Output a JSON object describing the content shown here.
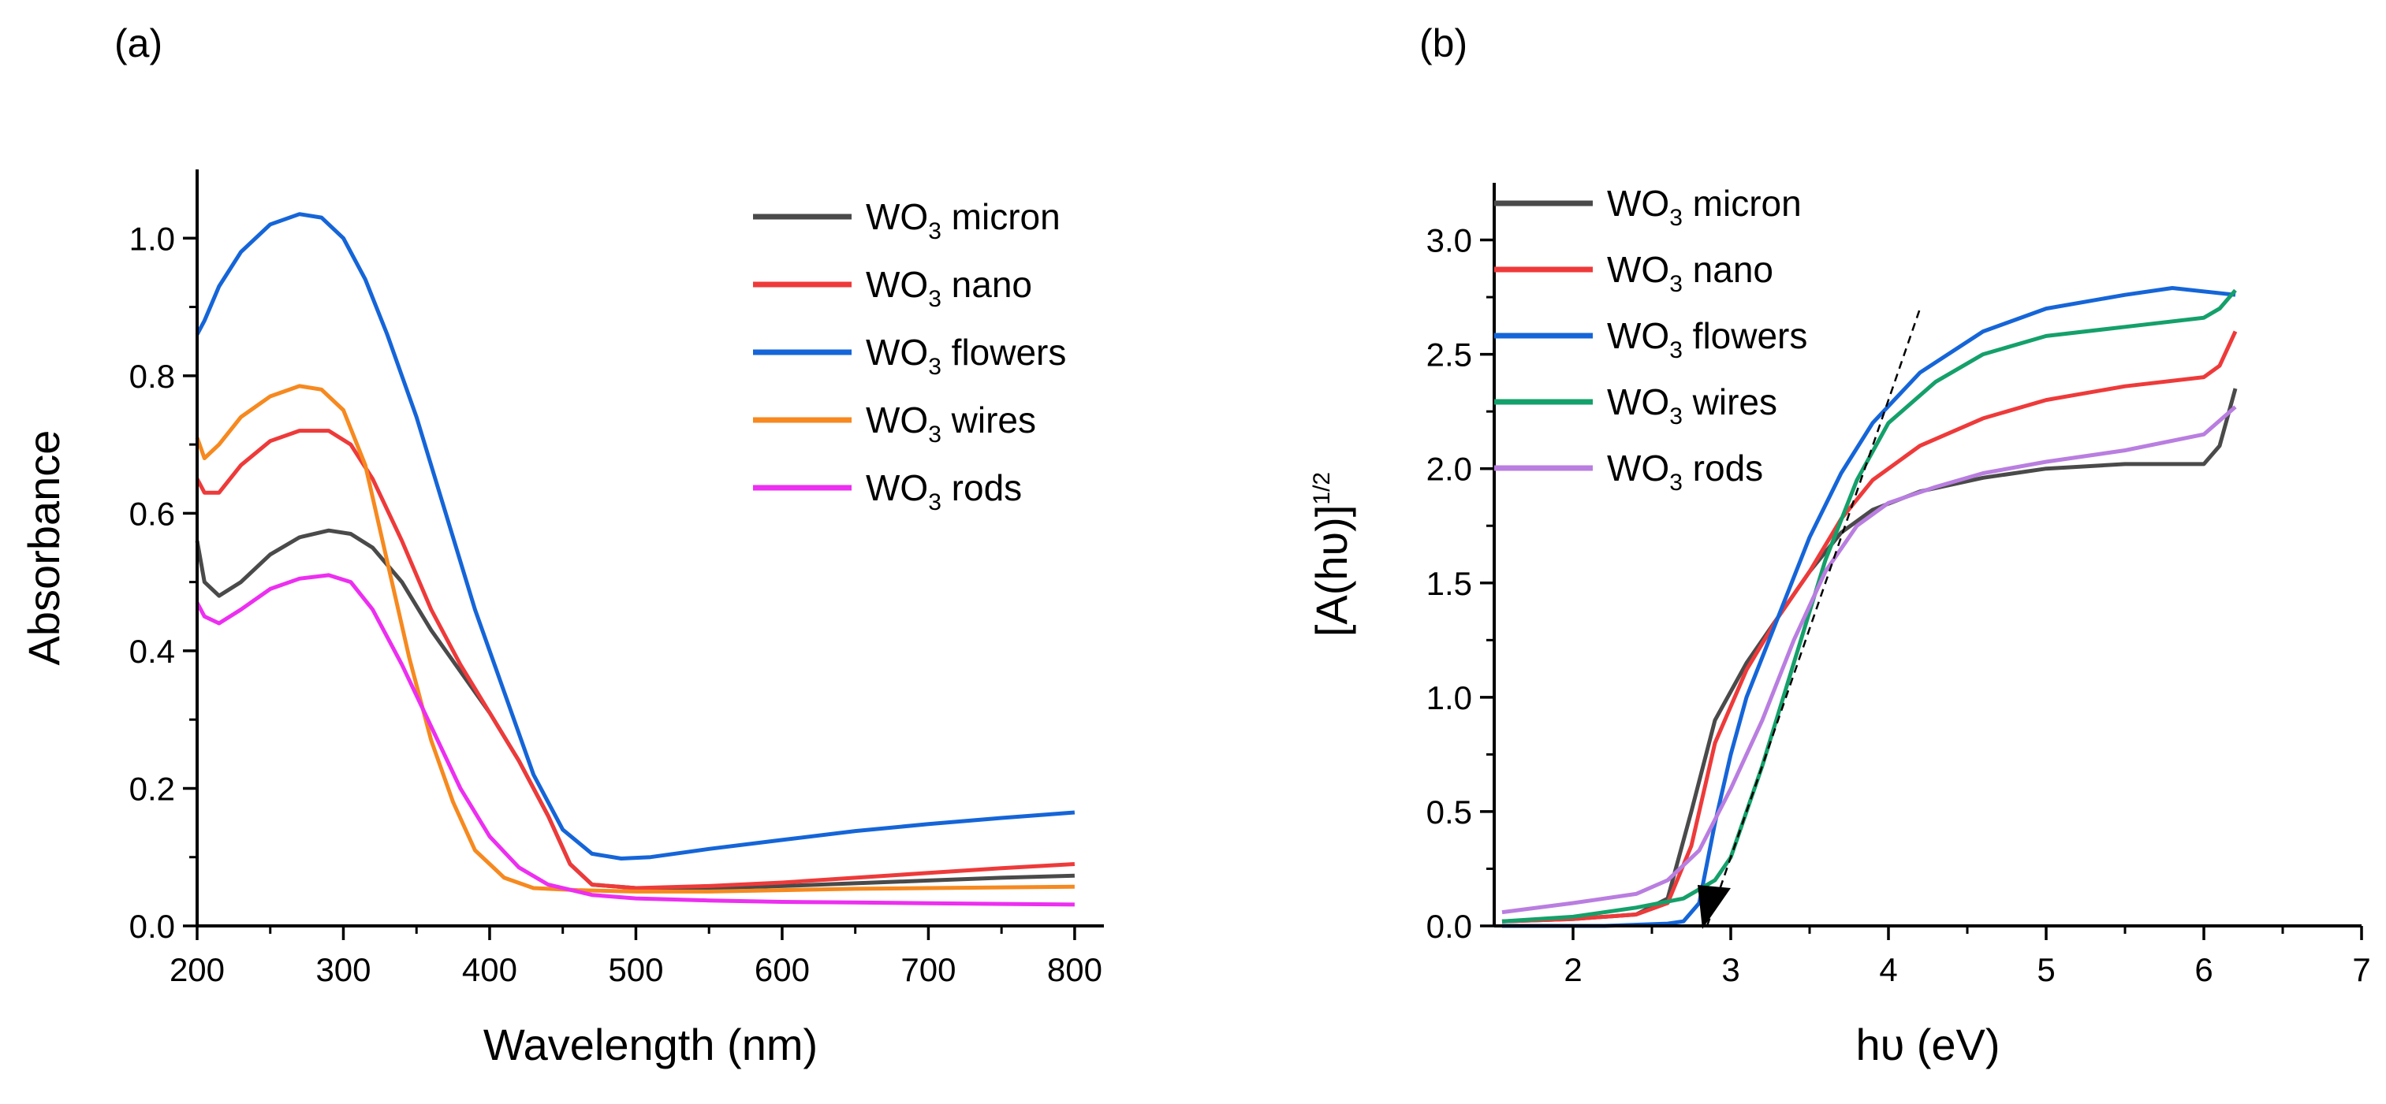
{
  "chart_data": [
    {
      "type": "line",
      "panel_label": "(a)",
      "xlabel": "Wavelength (nm)",
      "ylabel": "Absorbance",
      "xlim": [
        200,
        820
      ],
      "ylim": [
        0,
        1.1
      ],
      "xticks": [
        200,
        300,
        400,
        500,
        600,
        700,
        800
      ],
      "yticks": [
        0.0,
        0.2,
        0.4,
        0.6,
        0.8,
        1.0
      ],
      "xtick_labels": [
        "200",
        "300",
        "400",
        "500",
        "600",
        "700",
        "800"
      ],
      "ytick_labels": [
        "0.0",
        "0.2",
        "0.4",
        "0.6",
        "0.8",
        "1.0"
      ],
      "legend_position": "top-right",
      "series": [
        {
          "name": "WO3 micron",
          "base": "WO",
          "subscript": "3",
          "suffix": " micron",
          "color": "#4a4a4a",
          "points": [
            [
              200,
              0.56
            ],
            [
              205,
              0.5
            ],
            [
              215,
              0.48
            ],
            [
              230,
              0.5
            ],
            [
              250,
              0.54
            ],
            [
              270,
              0.565
            ],
            [
              290,
              0.575
            ],
            [
              305,
              0.57
            ],
            [
              320,
              0.55
            ],
            [
              340,
              0.5
            ],
            [
              360,
              0.43
            ],
            [
              380,
              0.37
            ],
            [
              400,
              0.31
            ],
            [
              420,
              0.24
            ],
            [
              440,
              0.16
            ],
            [
              455,
              0.09
            ],
            [
              470,
              0.06
            ],
            [
              500,
              0.055
            ],
            [
              550,
              0.055
            ],
            [
              600,
              0.058
            ],
            [
              650,
              0.062
            ],
            [
              700,
              0.066
            ],
            [
              750,
              0.07
            ],
            [
              800,
              0.073
            ]
          ]
        },
        {
          "name": "WO3 nano",
          "base": "WO",
          "subscript": "3",
          "suffix": " nano",
          "color": "#ee3a3a",
          "points": [
            [
              200,
              0.65
            ],
            [
              205,
              0.63
            ],
            [
              215,
              0.63
            ],
            [
              230,
              0.67
            ],
            [
              250,
              0.705
            ],
            [
              270,
              0.72
            ],
            [
              290,
              0.72
            ],
            [
              305,
              0.7
            ],
            [
              320,
              0.65
            ],
            [
              340,
              0.56
            ],
            [
              360,
              0.46
            ],
            [
              380,
              0.38
            ],
            [
              400,
              0.31
            ],
            [
              420,
              0.24
            ],
            [
              440,
              0.16
            ],
            [
              455,
              0.09
            ],
            [
              470,
              0.06
            ],
            [
              500,
              0.055
            ],
            [
              550,
              0.058
            ],
            [
              600,
              0.063
            ],
            [
              650,
              0.07
            ],
            [
              700,
              0.077
            ],
            [
              750,
              0.084
            ],
            [
              800,
              0.09
            ]
          ]
        },
        {
          "name": "WO3 flowers",
          "base": "WO",
          "subscript": "3",
          "suffix": " flowers",
          "color": "#1565d8",
          "points": [
            [
              200,
              0.86
            ],
            [
              205,
              0.88
            ],
            [
              215,
              0.93
            ],
            [
              230,
              0.98
            ],
            [
              250,
              1.02
            ],
            [
              270,
              1.035
            ],
            [
              285,
              1.03
            ],
            [
              300,
              1.0
            ],
            [
              315,
              0.94
            ],
            [
              330,
              0.86
            ],
            [
              350,
              0.74
            ],
            [
              370,
              0.6
            ],
            [
              390,
              0.46
            ],
            [
              410,
              0.34
            ],
            [
              430,
              0.22
            ],
            [
              450,
              0.14
            ],
            [
              470,
              0.105
            ],
            [
              490,
              0.098
            ],
            [
              510,
              0.1
            ],
            [
              550,
              0.112
            ],
            [
              600,
              0.125
            ],
            [
              650,
              0.138
            ],
            [
              700,
              0.148
            ],
            [
              750,
              0.157
            ],
            [
              800,
              0.165
            ]
          ]
        },
        {
          "name": "WO3 wires",
          "base": "WO",
          "subscript": "3",
          "suffix": " wires",
          "color": "#f6891f",
          "points": [
            [
              200,
              0.71
            ],
            [
              205,
              0.68
            ],
            [
              215,
              0.7
            ],
            [
              230,
              0.74
            ],
            [
              250,
              0.77
            ],
            [
              270,
              0.785
            ],
            [
              285,
              0.78
            ],
            [
              300,
              0.75
            ],
            [
              315,
              0.67
            ],
            [
              330,
              0.53
            ],
            [
              345,
              0.39
            ],
            [
              360,
              0.27
            ],
            [
              375,
              0.18
            ],
            [
              390,
              0.11
            ],
            [
              410,
              0.07
            ],
            [
              430,
              0.055
            ],
            [
              460,
              0.052
            ],
            [
              500,
              0.05
            ],
            [
              550,
              0.05
            ],
            [
              600,
              0.052
            ],
            [
              650,
              0.054
            ],
            [
              700,
              0.055
            ],
            [
              750,
              0.056
            ],
            [
              800,
              0.057
            ]
          ]
        },
        {
          "name": "WO3 rods",
          "base": "WO",
          "subscript": "3",
          "suffix": " rods",
          "color": "#ec2ff0",
          "points": [
            [
              200,
              0.47
            ],
            [
              205,
              0.45
            ],
            [
              215,
              0.44
            ],
            [
              230,
              0.46
            ],
            [
              250,
              0.49
            ],
            [
              270,
              0.505
            ],
            [
              290,
              0.51
            ],
            [
              305,
              0.5
            ],
            [
              320,
              0.46
            ],
            [
              340,
              0.38
            ],
            [
              360,
              0.29
            ],
            [
              380,
              0.2
            ],
            [
              400,
              0.13
            ],
            [
              420,
              0.085
            ],
            [
              440,
              0.06
            ],
            [
              470,
              0.045
            ],
            [
              500,
              0.04
            ],
            [
              550,
              0.037
            ],
            [
              600,
              0.035
            ],
            [
              650,
              0.034
            ],
            [
              700,
              0.033
            ],
            [
              750,
              0.032
            ],
            [
              800,
              0.031
            ]
          ]
        }
      ]
    },
    {
      "type": "line",
      "panel_label": "(b)",
      "xlabel": "hυ (eV)",
      "ylabel_main": "[A(hυ)]",
      "ylabel_sup": "1/2",
      "xlim": [
        1.5,
        7
      ],
      "ylim": [
        0,
        3.25
      ],
      "xticks": [
        2,
        3,
        4,
        5,
        6,
        7
      ],
      "yticks": [
        0.0,
        0.5,
        1.0,
        1.5,
        2.0,
        2.5,
        3.0
      ],
      "xtick_labels": [
        "2",
        "3",
        "4",
        "5",
        "6",
        "7"
      ],
      "ytick_labels": [
        "0.0",
        "0.5",
        "1.0",
        "1.5",
        "2.0",
        "2.5",
        "3.0"
      ],
      "legend_position": "top-left",
      "tangent_line": [
        [
          2.85,
          0.0
        ],
        [
          4.2,
          2.7
        ]
      ],
      "series": [
        {
          "name": "WO3 micron",
          "base": "WO",
          "subscript": "3",
          "suffix": " micron",
          "color": "#4a4a4a",
          "points": [
            [
              1.55,
              0.02
            ],
            [
              2.0,
              0.03
            ],
            [
              2.4,
              0.05
            ],
            [
              2.6,
              0.12
            ],
            [
              2.75,
              0.5
            ],
            [
              2.9,
              0.9
            ],
            [
              3.1,
              1.15
            ],
            [
              3.3,
              1.35
            ],
            [
              3.5,
              1.55
            ],
            [
              3.7,
              1.72
            ],
            [
              3.9,
              1.82
            ],
            [
              4.2,
              1.9
            ],
            [
              4.6,
              1.96
            ],
            [
              5.0,
              2.0
            ],
            [
              5.5,
              2.02
            ],
            [
              6.0,
              2.02
            ],
            [
              6.1,
              2.1
            ],
            [
              6.2,
              2.35
            ]
          ]
        },
        {
          "name": "WO3 nano",
          "base": "WO",
          "subscript": "3",
          "suffix": " nano",
          "color": "#ee3a3a",
          "points": [
            [
              1.55,
              0.02
            ],
            [
              2.0,
              0.03
            ],
            [
              2.4,
              0.05
            ],
            [
              2.6,
              0.1
            ],
            [
              2.75,
              0.35
            ],
            [
              2.9,
              0.8
            ],
            [
              3.1,
              1.12
            ],
            [
              3.3,
              1.35
            ],
            [
              3.5,
              1.55
            ],
            [
              3.7,
              1.78
            ],
            [
              3.9,
              1.95
            ],
            [
              4.2,
              2.1
            ],
            [
              4.6,
              2.22
            ],
            [
              5.0,
              2.3
            ],
            [
              5.5,
              2.36
            ],
            [
              6.0,
              2.4
            ],
            [
              6.1,
              2.45
            ],
            [
              6.2,
              2.6
            ]
          ]
        },
        {
          "name": "WO3 flowers",
          "base": "WO",
          "subscript": "3",
          "suffix": " flowers",
          "color": "#1565d8",
          "points": [
            [
              1.55,
              0.0
            ],
            [
              2.2,
              0.0
            ],
            [
              2.6,
              0.01
            ],
            [
              2.7,
              0.02
            ],
            [
              2.8,
              0.1
            ],
            [
              2.9,
              0.45
            ],
            [
              3.0,
              0.75
            ],
            [
              3.1,
              1.0
            ],
            [
              3.3,
              1.35
            ],
            [
              3.5,
              1.7
            ],
            [
              3.7,
              1.98
            ],
            [
              3.9,
              2.2
            ],
            [
              4.2,
              2.42
            ],
            [
              4.6,
              2.6
            ],
            [
              5.0,
              2.7
            ],
            [
              5.5,
              2.76
            ],
            [
              5.8,
              2.79
            ],
            [
              6.2,
              2.76
            ]
          ]
        },
        {
          "name": "WO3 wires",
          "base": "WO",
          "subscript": "3",
          "suffix": " wires",
          "color": "#14a06a",
          "points": [
            [
              1.55,
              0.02
            ],
            [
              2.0,
              0.04
            ],
            [
              2.4,
              0.08
            ],
            [
              2.7,
              0.12
            ],
            [
              2.9,
              0.2
            ],
            [
              3.0,
              0.3
            ],
            [
              3.2,
              0.7
            ],
            [
              3.4,
              1.15
            ],
            [
              3.6,
              1.6
            ],
            [
              3.8,
              1.95
            ],
            [
              4.0,
              2.2
            ],
            [
              4.3,
              2.38
            ],
            [
              4.6,
              2.5
            ],
            [
              5.0,
              2.58
            ],
            [
              5.5,
              2.62
            ],
            [
              6.0,
              2.66
            ],
            [
              6.1,
              2.7
            ],
            [
              6.2,
              2.78
            ]
          ]
        },
        {
          "name": "WO3 rods",
          "base": "WO",
          "subscript": "3",
          "suffix": " rods",
          "color": "#b97ee0",
          "points": [
            [
              1.55,
              0.06
            ],
            [
              2.0,
              0.1
            ],
            [
              2.4,
              0.14
            ],
            [
              2.6,
              0.2
            ],
            [
              2.8,
              0.33
            ],
            [
              3.0,
              0.6
            ],
            [
              3.2,
              0.9
            ],
            [
              3.4,
              1.25
            ],
            [
              3.6,
              1.55
            ],
            [
              3.8,
              1.75
            ],
            [
              4.0,
              1.85
            ],
            [
              4.3,
              1.92
            ],
            [
              4.6,
              1.98
            ],
            [
              5.0,
              2.03
            ],
            [
              5.5,
              2.08
            ],
            [
              6.0,
              2.15
            ],
            [
              6.2,
              2.27
            ]
          ]
        }
      ]
    }
  ]
}
